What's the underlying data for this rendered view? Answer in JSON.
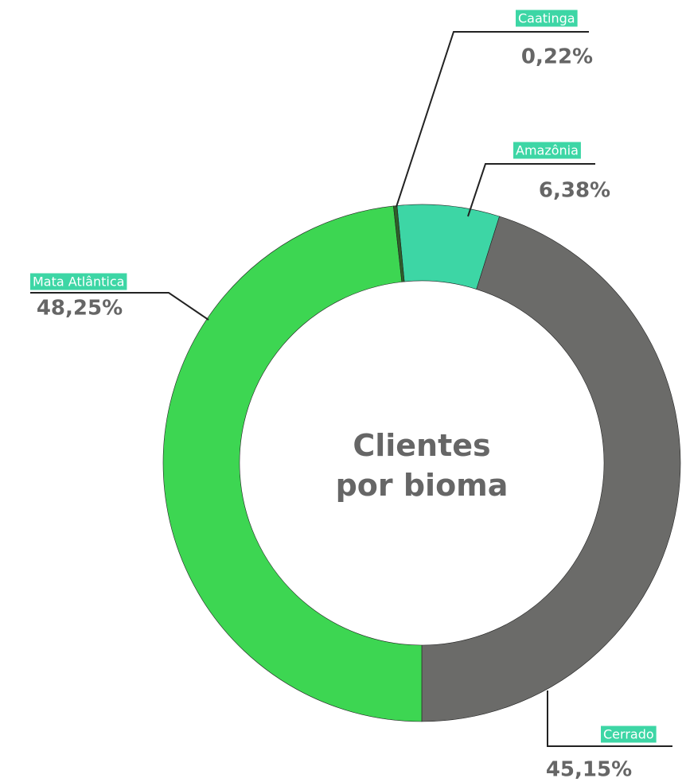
{
  "chart_data": {
    "type": "donut",
    "title": "Clientes por bioma",
    "categories": [
      "Amazônia",
      "Cerrado",
      "Mata Atlântica",
      "Caatinga"
    ],
    "values": [
      6.38,
      45.15,
      48.25,
      0.22
    ],
    "value_labels": [
      "6,38%",
      "45,15%",
      "48,25%",
      "0,22%"
    ],
    "colors": [
      "#3dd6a5",
      "#6b6b69",
      "#3dd652",
      "#2f5f2a"
    ]
  }
}
